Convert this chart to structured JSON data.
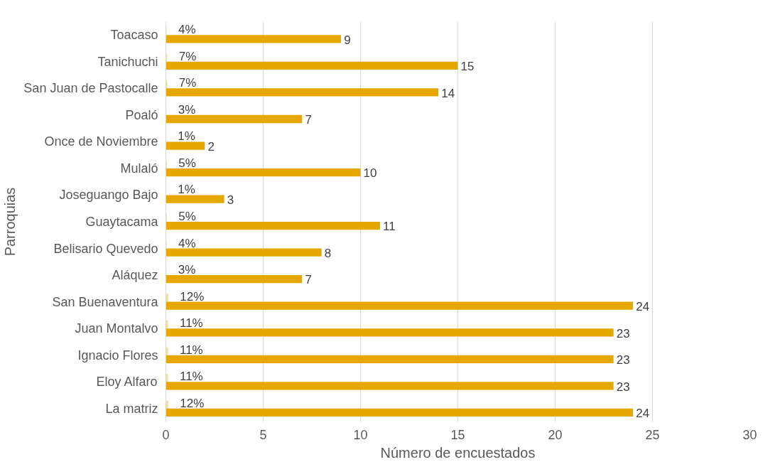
{
  "chart_data": {
    "type": "bar",
    "orientation": "horizontal",
    "xlabel": "Número de encuestados",
    "ylabel": "Parroquias",
    "categories": [
      "Toacaso",
      "Tanichuchi",
      "San Juan de Pastocalle",
      "Poaló",
      "Once de Noviembre",
      "Mulaló",
      "Joseguango Bajo",
      "Guaytacama",
      "Belisario Quevedo",
      "Aláquez",
      "San Buenaventura",
      "Juan Montalvo",
      "Ignacio Flores",
      "Eloy Alfaro",
      "La matriz"
    ],
    "series": [
      {
        "color": "#f6dd9a",
        "values": [
          0.04,
          0.07,
          0.07,
          0.03,
          0.01,
          0.05,
          0.01,
          0.05,
          0.04,
          0.03,
          0.12,
          0.11,
          0.11,
          0.11,
          0.12
        ],
        "value_labels": [
          "4%",
          "7%",
          "7%",
          "3%",
          "1%",
          "5%",
          "1%",
          "5%",
          "4%",
          "3%",
          "12%",
          "11%",
          "11%",
          "11%",
          "12%"
        ]
      },
      {
        "color": "#e6a800",
        "values": [
          9,
          15,
          14,
          7,
          2,
          10,
          3,
          11,
          8,
          7,
          24,
          23,
          23,
          23,
          24
        ],
        "value_labels": [
          "9",
          "15",
          "14",
          "7",
          "2",
          "10",
          "3",
          "11",
          "8",
          "7",
          "24",
          "23",
          "23",
          "23",
          "24"
        ]
      }
    ],
    "xlim": [
      0,
      30
    ],
    "xticks": [
      0,
      5,
      10,
      15,
      20,
      25,
      30
    ],
    "grid": "x"
  }
}
